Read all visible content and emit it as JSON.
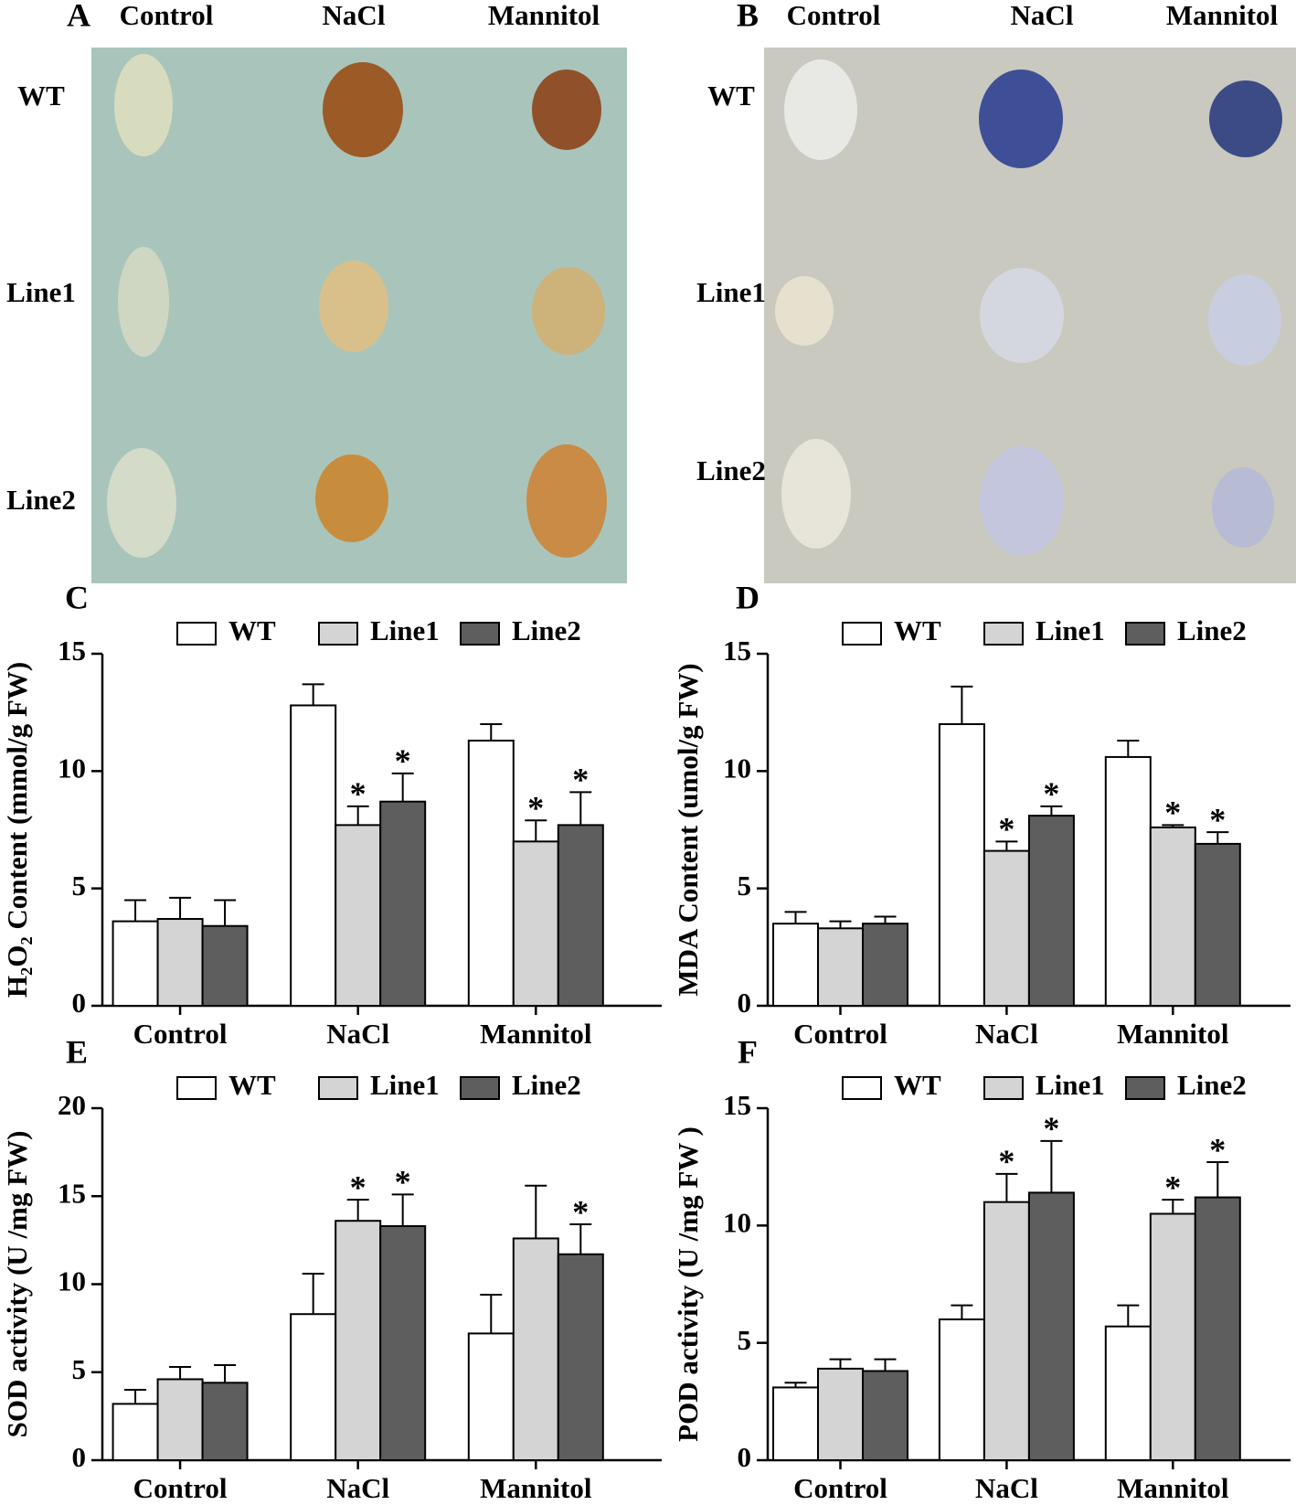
{
  "photo_panels": [
    {
      "letter": "A",
      "columns": [
        "Control",
        "NaCl",
        "Mannitol"
      ],
      "rows": [
        "WT",
        "Line1",
        "Line2"
      ]
    },
    {
      "letter": "B",
      "columns": [
        "Control",
        "NaCl",
        "Mannitol"
      ],
      "rows": [
        "WT",
        "Line1",
        "Line2"
      ]
    }
  ],
  "chart_data": [
    {
      "type": "bar",
      "panel": "C",
      "y_label": "H₂O₂ Content (mmol/g FW)",
      "categories": [
        "Control",
        "NaCl",
        "Mannitol"
      ],
      "ylim": [
        0,
        15
      ],
      "yticks": [
        0,
        5,
        10,
        15
      ],
      "series": [
        {
          "name": "WT",
          "color": "#ffffff",
          "values": [
            3.6,
            12.8,
            11.3
          ],
          "errors": [
            0.9,
            0.9,
            0.7
          ],
          "markers": [
            null,
            null,
            null
          ]
        },
        {
          "name": "Line1",
          "color": "#d4d4d4",
          "values": [
            3.7,
            7.7,
            7.0
          ],
          "errors": [
            0.9,
            0.8,
            0.9
          ],
          "markers": [
            null,
            "*",
            "*"
          ]
        },
        {
          "name": "Line2",
          "color": "#5e5e5e",
          "values": [
            3.4,
            8.7,
            7.7
          ],
          "errors": [
            1.1,
            1.2,
            1.4
          ],
          "markers": [
            null,
            "*",
            "*"
          ]
        }
      ]
    },
    {
      "type": "bar",
      "panel": "D",
      "y_label": "MDA Content (umol/g FW)",
      "categories": [
        "Control",
        "NaCl",
        "Mannitol"
      ],
      "ylim": [
        0,
        15
      ],
      "yticks": [
        0,
        5,
        10,
        15
      ],
      "series": [
        {
          "name": "WT",
          "color": "#ffffff",
          "values": [
            3.5,
            12.0,
            10.6
          ],
          "errors": [
            0.5,
            1.6,
            0.7
          ],
          "markers": [
            null,
            null,
            null
          ]
        },
        {
          "name": "Line1",
          "color": "#d4d4d4",
          "values": [
            3.3,
            6.6,
            7.6
          ],
          "errors": [
            0.3,
            0.4,
            0.1
          ],
          "markers": [
            null,
            "*",
            "*"
          ]
        },
        {
          "name": "Line2",
          "color": "#5e5e5e",
          "values": [
            3.5,
            8.1,
            6.9
          ],
          "errors": [
            0.3,
            0.4,
            0.5
          ],
          "markers": [
            null,
            "*",
            "*"
          ]
        }
      ]
    },
    {
      "type": "bar",
      "panel": "E",
      "y_label": "SOD activity (U /mg FW)",
      "categories": [
        "Control",
        "NaCl",
        "Mannitol"
      ],
      "ylim": [
        0,
        20
      ],
      "yticks": [
        0,
        5,
        10,
        15,
        20
      ],
      "series": [
        {
          "name": "WT",
          "color": "#ffffff",
          "values": [
            3.2,
            8.3,
            7.2
          ],
          "errors": [
            0.8,
            2.3,
            2.2
          ],
          "markers": [
            null,
            null,
            null
          ]
        },
        {
          "name": "Line1",
          "color": "#d4d4d4",
          "values": [
            4.6,
            13.6,
            12.6
          ],
          "errors": [
            0.7,
            1.2,
            3.0
          ],
          "markers": [
            null,
            "*",
            null
          ]
        },
        {
          "name": "Line2",
          "color": "#5e5e5e",
          "values": [
            4.4,
            13.3,
            11.7
          ],
          "errors": [
            1.0,
            1.8,
            1.7
          ],
          "markers": [
            null,
            "*",
            "*"
          ]
        }
      ]
    },
    {
      "type": "bar",
      "panel": "F",
      "y_label": "POD activity (U /mg FW )",
      "categories": [
        "Control",
        "NaCl",
        "Mannitol"
      ],
      "ylim": [
        0,
        15
      ],
      "yticks": [
        0,
        5,
        10,
        15
      ],
      "series": [
        {
          "name": "WT",
          "color": "#ffffff",
          "values": [
            3.1,
            6.0,
            5.7
          ],
          "errors": [
            0.2,
            0.6,
            0.9
          ],
          "markers": [
            null,
            null,
            null
          ]
        },
        {
          "name": "Line1",
          "color": "#d4d4d4",
          "values": [
            3.9,
            11.0,
            10.5
          ],
          "errors": [
            0.4,
            1.2,
            0.6
          ],
          "markers": [
            null,
            "*",
            "*"
          ]
        },
        {
          "name": "Line2",
          "color": "#5e5e5e",
          "values": [
            3.8,
            11.4,
            11.2
          ],
          "errors": [
            0.5,
            2.2,
            1.5
          ],
          "markers": [
            null,
            "*",
            "*"
          ]
        }
      ]
    }
  ]
}
